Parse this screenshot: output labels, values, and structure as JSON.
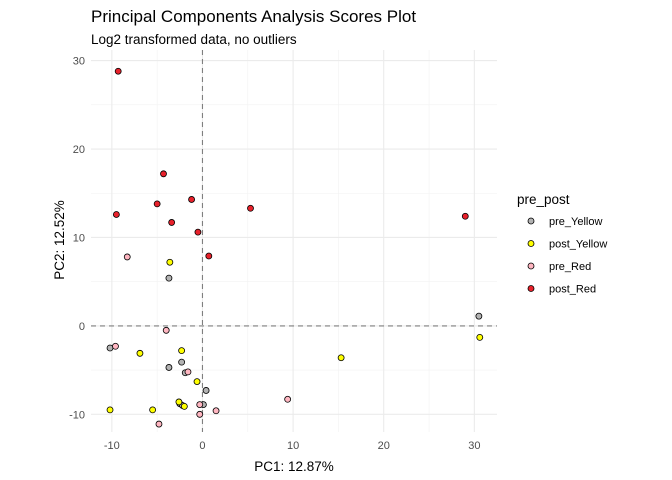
{
  "chart_data": {
    "type": "scatter",
    "title": "Principal Components Analysis Scores Plot",
    "subtitle": "Log2 transformed data, no outliers",
    "xlabel": "PC1: 12.87%",
    "ylabel": "PC2: 12.52%",
    "xlim": [
      -12.3,
      32.5
    ],
    "ylim": [
      -12.0,
      31.2
    ],
    "xticks": [
      -10,
      0,
      10,
      20,
      30
    ],
    "yticks": [
      -10,
      0,
      10,
      20,
      30
    ],
    "reference_lines": {
      "x": 0,
      "y": 0
    },
    "grid": true,
    "legend": {
      "title": "pre_post",
      "position": "right"
    },
    "series": [
      {
        "name": "pre_Yellow",
        "color": "#b3b3b3",
        "points": [
          [
            -10.2,
            -2.5
          ],
          [
            -3.7,
            5.4
          ],
          [
            -3.7,
            -4.7
          ],
          [
            -2.3,
            -4.1
          ],
          [
            -1.9,
            -5.3
          ],
          [
            -2.5,
            -8.8
          ],
          [
            -2.2,
            -9.0
          ],
          [
            0.4,
            -7.3
          ],
          [
            0.1,
            -8.9
          ],
          [
            30.5,
            1.1
          ]
        ]
      },
      {
        "name": "post_Yellow",
        "color": "#ffff00",
        "points": [
          [
            -3.6,
            7.2
          ],
          [
            -6.9,
            -3.1
          ],
          [
            -2.3,
            -2.8
          ],
          [
            -0.6,
            -6.3
          ],
          [
            -10.2,
            -9.5
          ],
          [
            -5.5,
            -9.5
          ],
          [
            -2.6,
            -8.6
          ],
          [
            -2.0,
            -9.1
          ],
          [
            15.3,
            -3.6
          ],
          [
            30.6,
            -1.3
          ]
        ]
      },
      {
        "name": "pre_Red",
        "color": "#ffb6c1",
        "points": [
          [
            -8.3,
            7.8
          ],
          [
            -9.6,
            -2.3
          ],
          [
            -4.0,
            -0.5
          ],
          [
            -1.6,
            -5.2
          ],
          [
            -0.3,
            -8.9
          ],
          [
            -0.3,
            -10.0
          ],
          [
            1.5,
            -9.6
          ],
          [
            9.4,
            -8.3
          ],
          [
            -4.8,
            -11.1
          ]
        ]
      },
      {
        "name": "post_Red",
        "color": "#e8212b",
        "points": [
          [
            -9.3,
            28.8
          ],
          [
            -4.3,
            17.2
          ],
          [
            -1.2,
            14.3
          ],
          [
            -5.0,
            13.8
          ],
          [
            -9.5,
            12.6
          ],
          [
            -3.4,
            11.7
          ],
          [
            -0.5,
            10.6
          ],
          [
            0.7,
            7.9
          ],
          [
            5.3,
            13.3
          ],
          [
            29.0,
            12.4
          ]
        ]
      }
    ]
  }
}
